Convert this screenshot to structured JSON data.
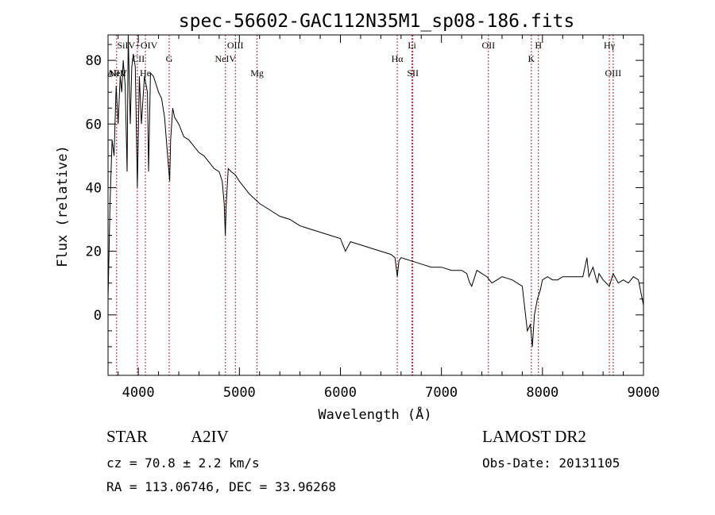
{
  "chart_data": {
    "type": "line",
    "title": "spec-56602-GAC112N35M1_sp08-186.fits",
    "xlabel": "Wavelength (Å)",
    "ylabel": "Flux (relative)",
    "xlim": [
      3700,
      9000
    ],
    "ylim": [
      -19,
      88
    ],
    "xticks": [
      4000,
      5000,
      6000,
      7000,
      8000,
      9000
    ],
    "yticks": [
      0,
      20,
      40,
      60,
      80
    ],
    "series": [
      {
        "x": [
          3700,
          3720,
          3740,
          3760,
          3780,
          3800,
          3820,
          3835,
          3850,
          3870,
          3889,
          3900,
          3920,
          3935,
          3950,
          3970,
          3990,
          4010,
          4030,
          4060,
          4090,
          4101,
          4120,
          4150,
          4180,
          4200,
          4230,
          4260,
          4290,
          4310,
          4320,
          4340,
          4360,
          4400,
          4450,
          4500,
          4550,
          4600,
          4650,
          4700,
          4750,
          4800,
          4830,
          4850,
          4861,
          4870,
          4890,
          4920,
          4960,
          5000,
          5100,
          5200,
          5300,
          5400,
          5500,
          5600,
          5700,
          5800,
          5900,
          6000,
          6050,
          6100,
          6200,
          6300,
          6400,
          6500,
          6540,
          6563,
          6580,
          6600,
          6700,
          6800,
          6900,
          7000,
          7100,
          7200,
          7250,
          7280,
          7300,
          7350,
          7400,
          7450,
          7500,
          7600,
          7700,
          7800,
          7850,
          7880,
          7900,
          7920,
          7950,
          7980,
          8000,
          8050,
          8100,
          8150,
          8200,
          8300,
          8350,
          8400,
          8440,
          8460,
          8500,
          8542,
          8560,
          8600,
          8662,
          8700,
          8750,
          8800,
          8850,
          8900,
          8950,
          9000
        ],
        "y": [
          5,
          35,
          55,
          50,
          72,
          60,
          75,
          70,
          80,
          72,
          45,
          88,
          60,
          78,
          82,
          78,
          40,
          75,
          60,
          75,
          70,
          45,
          76,
          75,
          72,
          70,
          68,
          62,
          50,
          42,
          55,
          65,
          62,
          60,
          56,
          55,
          53,
          51,
          50,
          48,
          46,
          45,
          42,
          35,
          25,
          35,
          46,
          45,
          44,
          42,
          38,
          35,
          33,
          31,
          30,
          28,
          27,
          26,
          25,
          24,
          20,
          23,
          22,
          21,
          20,
          19,
          18,
          12,
          17,
          18,
          17,
          16,
          15,
          15,
          14,
          14,
          13,
          10,
          9,
          14,
          13,
          12,
          10,
          12,
          11,
          9,
          -5,
          -3,
          -10,
          0,
          5,
          8,
          11,
          12,
          11,
          11,
          12,
          12,
          12,
          12,
          18,
          12,
          15,
          10,
          13,
          11,
          9,
          13,
          10,
          11,
          10,
          12,
          11,
          3
        ]
      }
    ],
    "line_labels": [
      {
        "text": "AlIII",
        "x": 3785,
        "row": 3,
        "line": true
      },
      {
        "text": "NeV",
        "x": 3800,
        "row": 3,
        "line": false
      },
      {
        "text": "SiIV+OIV",
        "x": 3990,
        "row": 0,
        "line": true
      },
      {
        "text": "CII",
        "x": 4000,
        "row": 1,
        "line": false
      },
      {
        "text": "He",
        "x": 4070,
        "row": 2,
        "line": true
      },
      {
        "text": "G",
        "x": 4305,
        "row": 1,
        "line": true
      },
      {
        "text": "NeIV",
        "x": 4862,
        "row": 1,
        "line": true
      },
      {
        "text": "OIII",
        "x": 4960,
        "row": 0,
        "line": true
      },
      {
        "text": "Mg",
        "x": 5175,
        "row": 2,
        "line": true
      },
      {
        "text": "Hα",
        "x": 6563,
        "row": 1,
        "line": true
      },
      {
        "text": "Li",
        "x": 6708,
        "row": 0,
        "line": true
      },
      {
        "text": "SII",
        "x": 6717,
        "row": 2,
        "line": true
      },
      {
        "text": "OII",
        "x": 7465,
        "row": 0,
        "line": true
      },
      {
        "text": "K",
        "x": 7890,
        "row": 1,
        "line": true
      },
      {
        "text": "H",
        "x": 7960,
        "row": 0,
        "line": true
      },
      {
        "text": "Hγ",
        "x": 8662,
        "row": 0,
        "line": true
      },
      {
        "text": "OIII",
        "x": 8700,
        "row": 2,
        "line": true
      }
    ],
    "grid": false,
    "legend": "none"
  },
  "info": {
    "object_class": "STAR",
    "subclass": "A2IV",
    "survey": "LAMOST DR2",
    "cz": "cz = 70.8 ± 2.2 km/s",
    "obs_date": "Obs-Date: 20131105",
    "coords": "RA = 113.06746, DEC =  33.96268"
  },
  "colors": {
    "spectrum": "#000000",
    "line_marker": "#b22222",
    "axes": "#000000"
  }
}
